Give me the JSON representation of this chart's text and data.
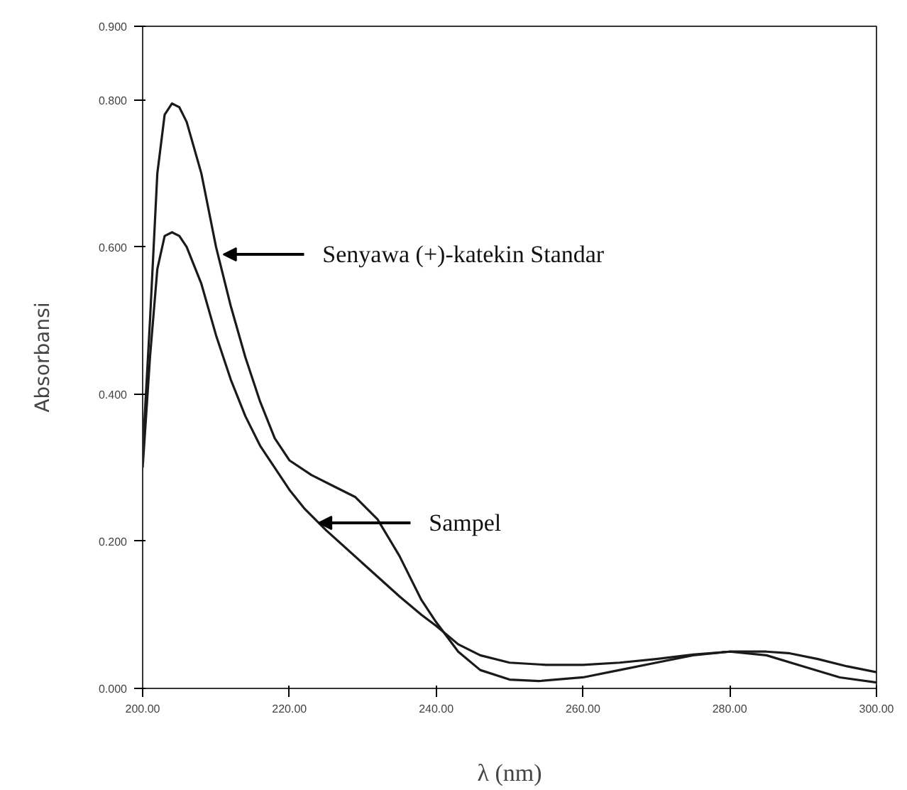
{
  "chart_data": {
    "type": "line",
    "xlabel": "λ (nm)",
    "ylabel": "Absorbansi",
    "x": [
      200,
      201,
      202,
      203,
      204,
      205,
      206,
      208,
      210,
      212,
      214,
      216,
      218,
      220,
      223,
      226,
      229,
      232,
      235,
      238,
      240,
      243,
      246,
      250,
      254,
      260,
      265,
      270,
      275,
      280,
      285,
      290,
      295,
      300
    ],
    "series": [
      {
        "color": "#1a1a1a",
        "values": [
          0.32,
          0.5,
          0.7,
          0.78,
          0.795,
          0.79,
          0.77,
          0.7,
          0.6,
          0.52,
          0.45,
          0.39,
          0.34,
          0.31,
          0.29,
          0.275,
          0.26,
          0.23,
          0.18,
          0.12,
          0.09,
          0.05,
          0.025,
          0.012,
          0.01,
          0.015,
          0.025,
          0.035,
          0.045,
          0.05,
          0.045,
          0.03,
          0.015,
          0.008
        ]
      },
      {
        "color": "#1a1a1a",
        "x": [
          200,
          201,
          202,
          203,
          204,
          205,
          206,
          208,
          210,
          212,
          214,
          216,
          218,
          220,
          222,
          225,
          230,
          235,
          238,
          240,
          243,
          246,
          250,
          255,
          260,
          265,
          270,
          275,
          280,
          285,
          288,
          292,
          296,
          300
        ],
        "values": [
          0.3,
          0.45,
          0.57,
          0.615,
          0.62,
          0.615,
          0.6,
          0.55,
          0.48,
          0.42,
          0.37,
          0.33,
          0.3,
          0.27,
          0.245,
          0.215,
          0.17,
          0.125,
          0.1,
          0.085,
          0.06,
          0.045,
          0.035,
          0.032,
          0.032,
          0.035,
          0.04,
          0.046,
          0.05,
          0.05,
          0.048,
          0.04,
          0.03,
          0.022
        ]
      }
    ],
    "annotations": [
      {
        "text": "Senyawa (+)-katekin Standar",
        "x": 211,
        "y": 0.59
      },
      {
        "text": "Sampel",
        "x": 224,
        "y": 0.225
      }
    ],
    "xlim": [
      200,
      300
    ],
    "ylim": [
      0,
      0.9
    ],
    "xticks": [
      {
        "value": 200,
        "label": "200.00"
      },
      {
        "value": 220,
        "label": "220.00"
      },
      {
        "value": 240,
        "label": "240.00"
      },
      {
        "value": 260,
        "label": "260.00"
      },
      {
        "value": 280,
        "label": "280.00"
      },
      {
        "value": 300,
        "label": "300.00"
      }
    ],
    "yticks": [
      {
        "value": 0,
        "label": "0.000"
      },
      {
        "value": 0.2,
        "label": "0.200"
      },
      {
        "value": 0.4,
        "label": "0.400"
      },
      {
        "value": 0.6,
        "label": "0.600"
      },
      {
        "value": 0.8,
        "label": "0.800"
      },
      {
        "value": 0.9,
        "label": "0.900"
      }
    ],
    "grid": false,
    "marker": "none",
    "line_style": "solid"
  }
}
